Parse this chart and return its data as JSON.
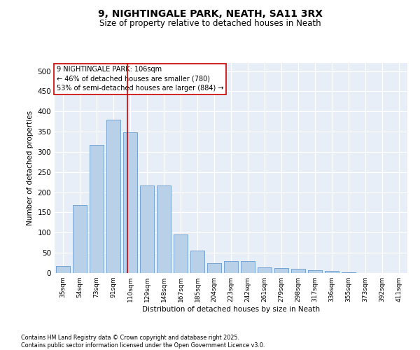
{
  "title_line1": "9, NIGHTINGALE PARK, NEATH, SA11 3RX",
  "title_line2": "Size of property relative to detached houses in Neath",
  "xlabel": "Distribution of detached houses by size in Neath",
  "ylabel": "Number of detached properties",
  "bar_values": [
    17,
    168,
    318,
    380,
    348,
    216,
    216,
    96,
    55,
    25,
    30,
    30,
    14,
    12,
    10,
    7,
    5,
    1,
    0,
    0,
    0
  ],
  "categories": [
    "35sqm",
    "54sqm",
    "73sqm",
    "91sqm",
    "110sqm",
    "129sqm",
    "148sqm",
    "167sqm",
    "185sqm",
    "204sqm",
    "223sqm",
    "242sqm",
    "261sqm",
    "279sqm",
    "298sqm",
    "317sqm",
    "336sqm",
    "355sqm",
    "373sqm",
    "392sqm",
    "411sqm"
  ],
  "bar_color": "#b8d0e8",
  "bar_edge_color": "#6699cc",
  "vline_x": 3.85,
  "vline_color": "#cc0000",
  "annotation_text": "9 NIGHTINGALE PARK: 106sqm\n← 46% of detached houses are smaller (780)\n53% of semi-detached houses are larger (884) →",
  "annotation_box_color": "#ffffff",
  "annotation_box_edge": "#cc0000",
  "ylim": [
    0,
    520
  ],
  "yticks": [
    0,
    50,
    100,
    150,
    200,
    250,
    300,
    350,
    400,
    450,
    500
  ],
  "background_color": "#e8eef8",
  "grid_color": "#ffffff",
  "footer_line1": "Contains HM Land Registry data © Crown copyright and database right 2025.",
  "footer_line2": "Contains public sector information licensed under the Open Government Licence v3.0."
}
